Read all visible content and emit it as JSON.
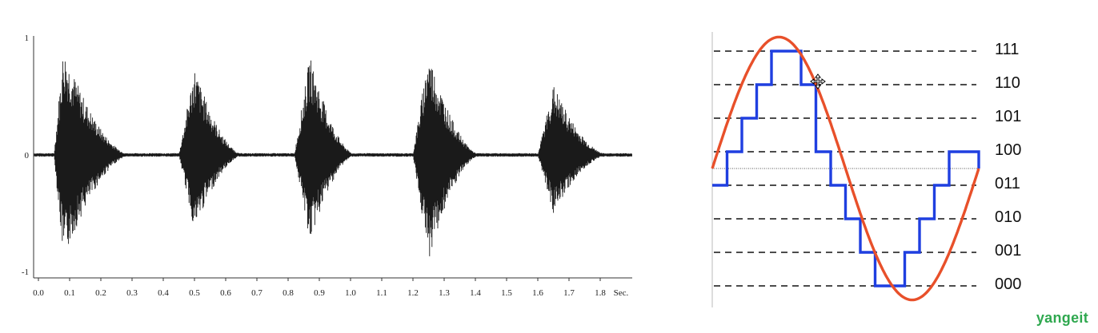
{
  "watermark": "yangeit",
  "chart_data": [
    {
      "type": "line",
      "x_tick_labels": [
        "0.0",
        "0.1",
        "0.2",
        "0.3",
        "0.4",
        "0.5",
        "0.6",
        "0.7",
        "0.8",
        "0.9",
        "1.0",
        "1.1",
        "1.2",
        "1.3",
        "1.4",
        "1.5",
        "1.6",
        "1.7",
        "1.8"
      ],
      "x_unit_label": "Sec.",
      "y_tick_labels": [
        "1",
        "0",
        "-1"
      ],
      "xlim": [
        0,
        1.95
      ],
      "ylim": [
        -1,
        1
      ],
      "bursts": [
        {
          "start": 0.05,
          "peak_time": 0.08,
          "end": 0.3,
          "amplitude_pos": 0.92,
          "amplitude_neg": 0.9
        },
        {
          "start": 0.45,
          "peak_time": 0.5,
          "end": 0.66,
          "amplitude_pos": 0.75,
          "amplitude_neg": 0.65
        },
        {
          "start": 0.82,
          "peak_time": 0.87,
          "end": 1.02,
          "amplitude_pos": 0.85,
          "amplitude_neg": 0.75
        },
        {
          "start": 1.2,
          "peak_time": 1.25,
          "end": 1.42,
          "amplitude_pos": 0.88,
          "amplitude_neg": 0.9
        },
        {
          "start": 1.6,
          "peak_time": 1.65,
          "end": 1.83,
          "amplitude_pos": 0.6,
          "amplitude_neg": 0.5
        }
      ],
      "fill_color": "#1a1a1a",
      "grid": false
    },
    {
      "type": "line",
      "levels": [
        "111",
        "110",
        "101",
        "100",
        "011",
        "010",
        "001",
        "000"
      ],
      "series": [
        {
          "values": [
            0.5,
            0.85,
            1.0,
            1.1,
            1.0,
            0.7,
            0.4,
            0.1,
            -0.2,
            -0.5,
            -0.8,
            -1.0,
            -1.1,
            -1.05,
            -0.85,
            -0.55,
            -0.3,
            0.0
          ],
          "color": "#e8502a"
        },
        {
          "levels_index": [
            4,
            3,
            2,
            1,
            0,
            0,
            1,
            3,
            4,
            5,
            6,
            7,
            7,
            6,
            5,
            4,
            3,
            3
          ],
          "color": "#1f3fe0"
        }
      ],
      "grid": "dashed-horizontal"
    }
  ]
}
